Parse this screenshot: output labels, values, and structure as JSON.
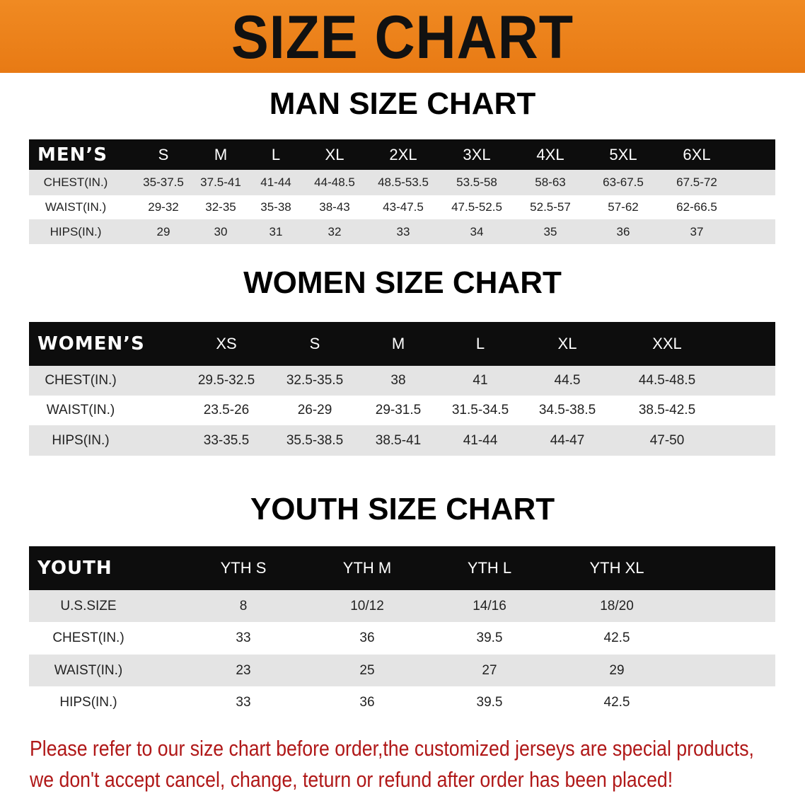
{
  "banner_title": "SIZE CHART",
  "accent_color": "#e87a14",
  "note_color": "#b01818",
  "men": {
    "title": "MAN SIZE CHART",
    "header": [
      "MEN’S",
      "S",
      "M",
      "L",
      "XL",
      "2XL",
      "3XL",
      "4XL",
      "5XL",
      "6XL"
    ],
    "rows": [
      [
        "CHEST(IN.)",
        "35-37.5",
        "37.5-41",
        "41-44",
        "44-48.5",
        "48.5-53.5",
        "53.5-58",
        "58-63",
        "63-67.5",
        "67.5-72"
      ],
      [
        "WAIST(IN.)",
        "29-32",
        "32-35",
        "35-38",
        "38-43",
        "43-47.5",
        "47.5-52.5",
        "52.5-57",
        "57-62",
        "62-66.5"
      ],
      [
        "HIPS(IN.)",
        "29",
        "30",
        "31",
        "32",
        "33",
        "34",
        "35",
        "36",
        "37"
      ]
    ]
  },
  "women": {
    "title": "WOMEN SIZE CHART",
    "header": [
      "WOMEN’S",
      "XS",
      "S",
      "M",
      "L",
      "XL",
      "XXL"
    ],
    "rows": [
      [
        "CHEST(IN.)",
        "29.5-32.5",
        "32.5-35.5",
        "38",
        "41",
        "44.5",
        "44.5-48.5"
      ],
      [
        "WAIST(IN.)",
        "23.5-26",
        "26-29",
        "29-31.5",
        "31.5-34.5",
        "34.5-38.5",
        "38.5-42.5"
      ],
      [
        "HIPS(IN.)",
        "33-35.5",
        "35.5-38.5",
        "38.5-41",
        "41-44",
        "44-47",
        "47-50"
      ]
    ]
  },
  "youth": {
    "title": "YOUTH SIZE CHART",
    "header": [
      "YOUTH",
      "YTH S",
      "YTH M",
      "YTH L",
      "YTH XL"
    ],
    "rows": [
      [
        "U.S.SIZE",
        "8",
        "10/12",
        "14/16",
        "18/20"
      ],
      [
        "CHEST(IN.)",
        "33",
        "36",
        "39.5",
        "42.5"
      ],
      [
        "WAIST(IN.)",
        "23",
        "25",
        "27",
        "29"
      ],
      [
        "HIPS(IN.)",
        "33",
        "36",
        "39.5",
        "42.5"
      ]
    ]
  },
  "note": [
    "Please refer to our size chart before order,the customized jerseys are special products,",
    "we don't accept cancel, change, teturn or refund after order has been placed!"
  ]
}
